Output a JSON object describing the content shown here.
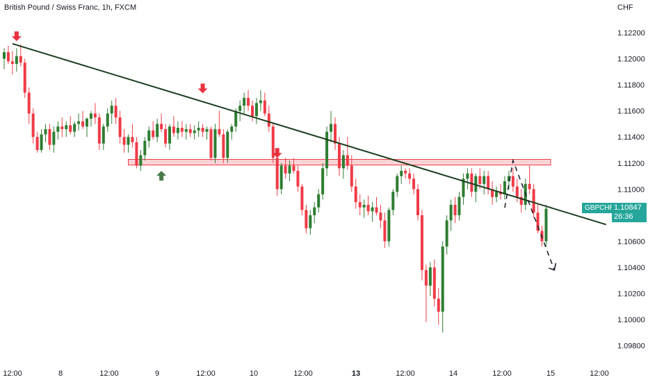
{
  "chart_data": {
    "type": "candlestick",
    "title": "British Pound / Swiss Franc, 1h, FXCM",
    "currency": "CHF",
    "symbol": "GBPCHF",
    "last_price": "1.10847",
    "countdown": "26:36",
    "ylim": [
      1.0975,
      1.1228
    ],
    "y_ticks": [
      "1.12200",
      "1.12000",
      "1.11800",
      "1.11600",
      "1.11400",
      "1.11200",
      "1.11000",
      "1.10600",
      "1.10400",
      "1.10200",
      "1.10000",
      "1.09800"
    ],
    "x_ticks": [
      "12:00",
      "8",
      "12:00",
      "9",
      "12:00",
      "10",
      "12:00",
      "13",
      "12:00",
      "14",
      "12:00",
      "15",
      "12:00"
    ],
    "up_color": "#2e7d32",
    "down_color": "#ef3b47",
    "candles": [
      [
        1.12,
        1.1208,
        1.1192,
        1.1205
      ],
      [
        1.1205,
        1.121,
        1.1196,
        1.1198
      ],
      [
        1.1198,
        1.1206,
        1.1188,
        1.1196
      ],
      [
        1.1196,
        1.1208,
        1.119,
        1.1202
      ],
      [
        1.1202,
        1.1211,
        1.1194,
        1.1197
      ],
      [
        1.1197,
        1.12,
        1.117,
        1.1174
      ],
      [
        1.1174,
        1.1178,
        1.115,
        1.1158
      ],
      [
        1.1158,
        1.1162,
        1.1135,
        1.114
      ],
      [
        1.114,
        1.1144,
        1.1128,
        1.113
      ],
      [
        1.113,
        1.1146,
        1.1128,
        1.1142
      ],
      [
        1.1142,
        1.115,
        1.1136,
        1.1146
      ],
      [
        1.1146,
        1.115,
        1.113,
        1.1134
      ],
      [
        1.1134,
        1.1148,
        1.1128,
        1.1144
      ],
      [
        1.1144,
        1.1152,
        1.1138,
        1.1148
      ],
      [
        1.1148,
        1.1155,
        1.114,
        1.1146
      ],
      [
        1.1146,
        1.1152,
        1.114,
        1.1149
      ],
      [
        1.1149,
        1.1156,
        1.1142,
        1.1144
      ],
      [
        1.1144,
        1.1152,
        1.114,
        1.115
      ],
      [
        1.115,
        1.1158,
        1.1145,
        1.1152
      ],
      [
        1.1152,
        1.116,
        1.1146,
        1.1148
      ],
      [
        1.1148,
        1.1155,
        1.114,
        1.1154
      ],
      [
        1.1154,
        1.116,
        1.1148,
        1.1158
      ],
      [
        1.1158,
        1.1166,
        1.115,
        1.1155
      ],
      [
        1.1155,
        1.1158,
        1.113,
        1.1135
      ],
      [
        1.1135,
        1.115,
        1.113,
        1.1148
      ],
      [
        1.1148,
        1.1162,
        1.1144,
        1.1158
      ],
      [
        1.1158,
        1.1168,
        1.115,
        1.1164
      ],
      [
        1.1164,
        1.117,
        1.115,
        1.1155
      ],
      [
        1.1155,
        1.116,
        1.1135,
        1.114
      ],
      [
        1.114,
        1.1146,
        1.1128,
        1.1134
      ],
      [
        1.1134,
        1.1142,
        1.1128,
        1.114
      ],
      [
        1.114,
        1.115,
        1.1132,
        1.1136
      ],
      [
        1.1136,
        1.114,
        1.1116,
        1.1118
      ],
      [
        1.1118,
        1.113,
        1.1114,
        1.1126
      ],
      [
        1.1126,
        1.114,
        1.1122,
        1.1137
      ],
      [
        1.1137,
        1.1148,
        1.1132,
        1.1145
      ],
      [
        1.1145,
        1.1152,
        1.1138,
        1.114
      ],
      [
        1.114,
        1.1154,
        1.1136,
        1.115
      ],
      [
        1.115,
        1.1158,
        1.1144,
        1.1146
      ],
      [
        1.1146,
        1.115,
        1.1132,
        1.1135
      ],
      [
        1.1135,
        1.115,
        1.113,
        1.1148
      ],
      [
        1.1148,
        1.1156,
        1.114,
        1.1143
      ],
      [
        1.1143,
        1.1152,
        1.1138,
        1.1147
      ],
      [
        1.1147,
        1.1152,
        1.114,
        1.1144
      ],
      [
        1.1144,
        1.115,
        1.1138,
        1.1146
      ],
      [
        1.1146,
        1.115,
        1.114,
        1.1143
      ],
      [
        1.1143,
        1.1149,
        1.1138,
        1.1145
      ],
      [
        1.1145,
        1.1152,
        1.114,
        1.1147
      ],
      [
        1.1147,
        1.115,
        1.114,
        1.1144
      ],
      [
        1.1144,
        1.1148,
        1.1138,
        1.1146
      ],
      [
        1.1146,
        1.1148,
        1.1122,
        1.1124
      ],
      [
        1.1124,
        1.115,
        1.112,
        1.1146
      ],
      [
        1.1146,
        1.116,
        1.114,
        1.1142
      ],
      [
        1.1142,
        1.1146,
        1.112,
        1.1124
      ],
      [
        1.1124,
        1.1146,
        1.112,
        1.1144
      ],
      [
        1.1144,
        1.115,
        1.1138,
        1.1148
      ],
      [
        1.1148,
        1.1162,
        1.1144,
        1.116
      ],
      [
        1.116,
        1.1168,
        1.1152,
        1.1164
      ],
      [
        1.1164,
        1.1174,
        1.1158,
        1.117
      ],
      [
        1.117,
        1.1176,
        1.116,
        1.1164
      ],
      [
        1.1164,
        1.1168,
        1.1152,
        1.1156
      ],
      [
        1.1156,
        1.117,
        1.115,
        1.1166
      ],
      [
        1.1166,
        1.1176,
        1.116,
        1.1168
      ],
      [
        1.1168,
        1.1174,
        1.1156,
        1.1158
      ],
      [
        1.1158,
        1.1164,
        1.1144,
        1.1148
      ],
      [
        1.1148,
        1.115,
        1.112,
        1.1124
      ],
      [
        1.1124,
        1.1128,
        1.1095,
        1.11
      ],
      [
        1.11,
        1.112,
        1.1096,
        1.1118
      ],
      [
        1.1118,
        1.1124,
        1.1108,
        1.1112
      ],
      [
        1.1112,
        1.1122,
        1.1106,
        1.1118
      ],
      [
        1.1118,
        1.1124,
        1.1112,
        1.1114
      ],
      [
        1.1114,
        1.1118,
        1.1098,
        1.1102
      ],
      [
        1.1102,
        1.1104,
        1.108,
        1.1084
      ],
      [
        1.1084,
        1.1088,
        1.1066,
        1.107
      ],
      [
        1.107,
        1.1084,
        1.1065,
        1.108
      ],
      [
        1.108,
        1.109,
        1.1074,
        1.1086
      ],
      [
        1.1086,
        1.11,
        1.1082,
        1.1096
      ],
      [
        1.1096,
        1.112,
        1.1092,
        1.1116
      ],
      [
        1.1116,
        1.1148,
        1.111,
        1.1144
      ],
      [
        1.1144,
        1.116,
        1.1136,
        1.115
      ],
      [
        1.115,
        1.1155,
        1.113,
        1.1135
      ],
      [
        1.1135,
        1.114,
        1.111,
        1.1116
      ],
      [
        1.1116,
        1.113,
        1.1108,
        1.1126
      ],
      [
        1.1126,
        1.114,
        1.1115,
        1.1118
      ],
      [
        1.1118,
        1.1126,
        1.1098,
        1.1102
      ],
      [
        1.1102,
        1.1108,
        1.1085,
        1.109
      ],
      [
        1.109,
        1.1096,
        1.108,
        1.1086
      ],
      [
        1.1086,
        1.1092,
        1.1078,
        1.1088
      ],
      [
        1.1088,
        1.1095,
        1.108,
        1.1083
      ],
      [
        1.1083,
        1.109,
        1.1075,
        1.1086
      ],
      [
        1.1086,
        1.1094,
        1.108,
        1.1082
      ],
      [
        1.1082,
        1.1088,
        1.107,
        1.1076
      ],
      [
        1.1076,
        1.1082,
        1.1055,
        1.106
      ],
      [
        1.106,
        1.1086,
        1.1056,
        1.1084
      ],
      [
        1.1084,
        1.11,
        1.108,
        1.1098
      ],
      [
        1.1098,
        1.1112,
        1.1094,
        1.111
      ],
      [
        1.111,
        1.1118,
        1.1104,
        1.1114
      ],
      [
        1.1114,
        1.1116,
        1.1108,
        1.1112
      ],
      [
        1.1112,
        1.1116,
        1.1104,
        1.1108
      ],
      [
        1.1108,
        1.1112,
        1.1096,
        1.11
      ],
      [
        1.11,
        1.1104,
        1.1076,
        1.108
      ],
      [
        1.108,
        1.1084,
        1.103,
        1.1038
      ],
      [
        1.1038,
        1.1042,
        1.0998,
        1.1026
      ],
      [
        1.1026,
        1.1044,
        1.1018,
        1.104
      ],
      [
        1.104,
        1.1046,
        1.101,
        1.1016
      ],
      [
        1.1016,
        1.1024,
        1.0996,
        1.1006
      ],
      [
        1.1006,
        1.106,
        1.099,
        1.1056
      ],
      [
        1.1056,
        1.108,
        1.105,
        1.1076
      ],
      [
        1.1076,
        1.1092,
        1.1068,
        1.1088
      ],
      [
        1.1088,
        1.1094,
        1.1074,
        1.108
      ],
      [
        1.108,
        1.1098,
        1.1076,
        1.1094
      ],
      [
        1.1094,
        1.1112,
        1.1088,
        1.1108
      ],
      [
        1.1108,
        1.1116,
        1.11,
        1.1112
      ],
      [
        1.1112,
        1.1116,
        1.1094,
        1.1098
      ],
      [
        1.1098,
        1.1112,
        1.109,
        1.111
      ],
      [
        1.111,
        1.1116,
        1.11,
        1.1104
      ],
      [
        1.1104,
        1.1114,
        1.1096,
        1.111
      ],
      [
        1.111,
        1.1114,
        1.1096,
        1.11
      ],
      [
        1.11,
        1.1106,
        1.1088,
        1.1094
      ],
      [
        1.1094,
        1.1102,
        1.109,
        1.1098
      ],
      [
        1.1098,
        1.1104,
        1.1092,
        1.1096
      ],
      [
        1.1096,
        1.111,
        1.1092,
        1.1106
      ],
      [
        1.1106,
        1.1114,
        1.11,
        1.111
      ],
      [
        1.111,
        1.1116,
        1.1098,
        1.1102
      ],
      [
        1.1102,
        1.1108,
        1.109,
        1.1094
      ],
      [
        1.1094,
        1.11,
        1.1082,
        1.1088
      ],
      [
        1.1088,
        1.1108,
        1.1084,
        1.1104
      ],
      [
        1.1104,
        1.1118,
        1.1096,
        1.11
      ],
      [
        1.11,
        1.1104,
        1.1078,
        1.1082
      ],
      [
        1.1082,
        1.1088,
        1.1066,
        1.1068
      ],
      [
        1.1068,
        1.1072,
        1.1056,
        1.106
      ],
      [
        1.106,
        1.1088,
        1.1056,
        1.1085
      ]
    ],
    "resistance_zone": [
      1.11185,
      1.11228
    ],
    "trendline": [
      [
        2,
        1.12115
      ],
      [
        127,
        1.11048
      ]
    ],
    "projection": [
      [
        121,
        1.10857
      ],
      [
        123,
        1.11219
      ],
      [
        133,
        1.10379
      ]
    ],
    "markers": [
      {
        "type": "down",
        "index": 3,
        "price": 1.12135
      },
      {
        "type": "down",
        "index": 48,
        "price": 1.11735
      },
      {
        "type": "down",
        "index": 66,
        "price": 1.1124
      },
      {
        "type": "up",
        "index": 38,
        "price": 1.1114
      }
    ]
  }
}
